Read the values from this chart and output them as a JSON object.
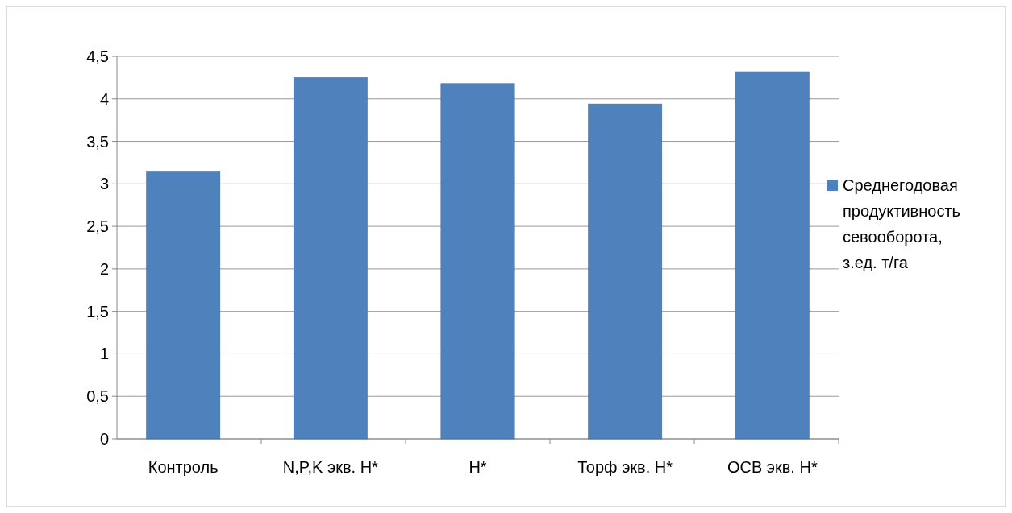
{
  "chart_data": {
    "type": "bar",
    "categories": [
      "Контроль",
      "N,P,K экв. Н*",
      "Н*",
      "Торф экв. Н*",
      "ОСВ экв. Н*"
    ],
    "series": [
      {
        "name": "Среднегодовая продуктивность севооборота, з.ед. т/га",
        "color": "#4f81bd",
        "values": [
          3.15,
          4.25,
          4.18,
          3.94,
          4.32
        ]
      }
    ],
    "ylim": [
      0,
      4.5
    ],
    "yticks": [
      0,
      {
        "value": 0.5,
        "label": "0,5"
      },
      1,
      {
        "value": 1.5,
        "label": "1,5"
      },
      2,
      {
        "value": 2.5,
        "label": "2,5"
      },
      3,
      {
        "value": 3.5,
        "label": "3,5"
      },
      4,
      {
        "value": 4.5,
        "label": "4,5"
      }
    ],
    "grid": "y",
    "legend": "right"
  }
}
